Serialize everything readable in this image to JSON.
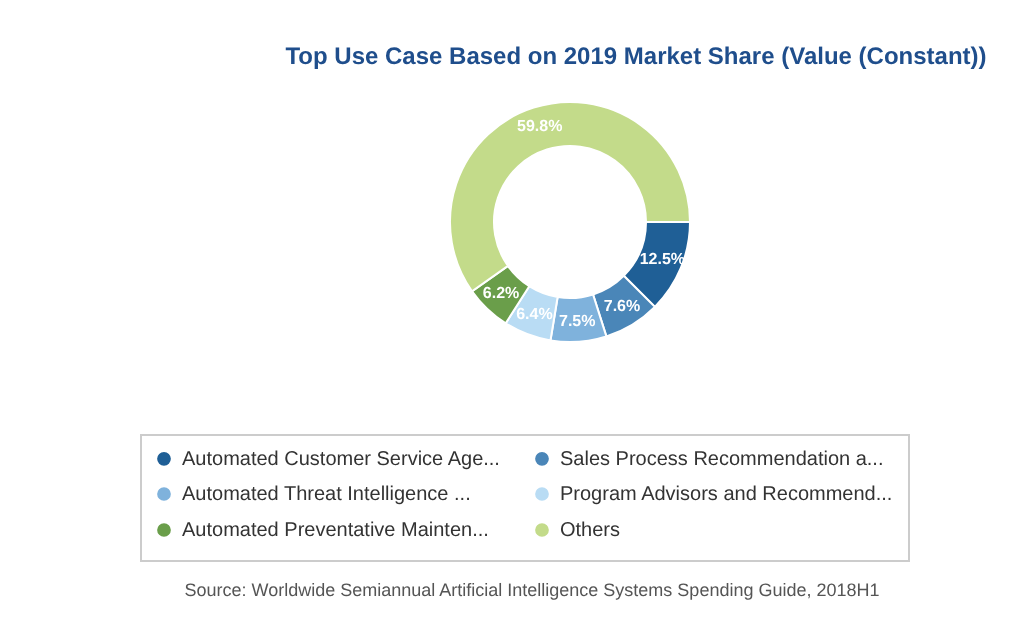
{
  "chart_data": {
    "type": "donut",
    "title": "Top Use Case Based on 2019 Market Share (Value (Constant))",
    "categories": [
      "Automated Customer Service Age...",
      "Sales Process Recommendation a...",
      "Automated Threat Intelligence ...",
      "Program Advisors and Recommend...",
      "Automated Preventative Mainten...",
      "Others"
    ],
    "values": [
      12.5,
      7.6,
      7.5,
      6.4,
      6.2,
      59.8
    ],
    "value_labels": [
      "12.5%",
      "7.6%",
      "7.5%",
      "6.4%",
      "6.2%",
      "59.8%"
    ],
    "colors": [
      "#1f5f96",
      "#4a86b8",
      "#7fb2dc",
      "#b9dcf4",
      "#6a9e4a",
      "#c3db8a"
    ],
    "legend": "bottom",
    "annotations": [
      "Source: Worldwide Semiannual Artificial Intelligence Systems Spending Guide, 2018H1"
    ]
  }
}
